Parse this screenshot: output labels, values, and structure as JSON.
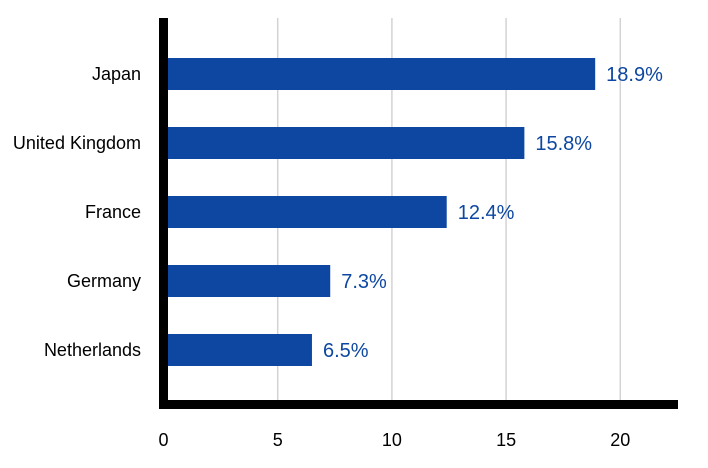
{
  "chart_data": {
    "type": "bar",
    "orientation": "horizontal",
    "title": "",
    "xlabel": "",
    "ylabel": "",
    "categories": [
      "Japan",
      "United Kingdom",
      "France",
      "Germany",
      "Netherlands"
    ],
    "values": [
      18.9,
      15.8,
      12.4,
      7.3,
      6.5
    ],
    "data_labels": [
      "18.9%",
      "15.8%",
      "12.4%",
      "7.3%",
      "6.5%"
    ],
    "xlim": [
      0,
      22.5
    ],
    "xticks": [
      0,
      5,
      10,
      15,
      20
    ],
    "xtick_labels": [
      "0",
      "5",
      "10",
      "15",
      "20"
    ],
    "grid": "vertical",
    "legend": "none",
    "colors": {
      "bar": "#0d47a1",
      "data_label": "#0d47a1",
      "axis": "#000000",
      "grid": "#d3d3d3"
    }
  }
}
